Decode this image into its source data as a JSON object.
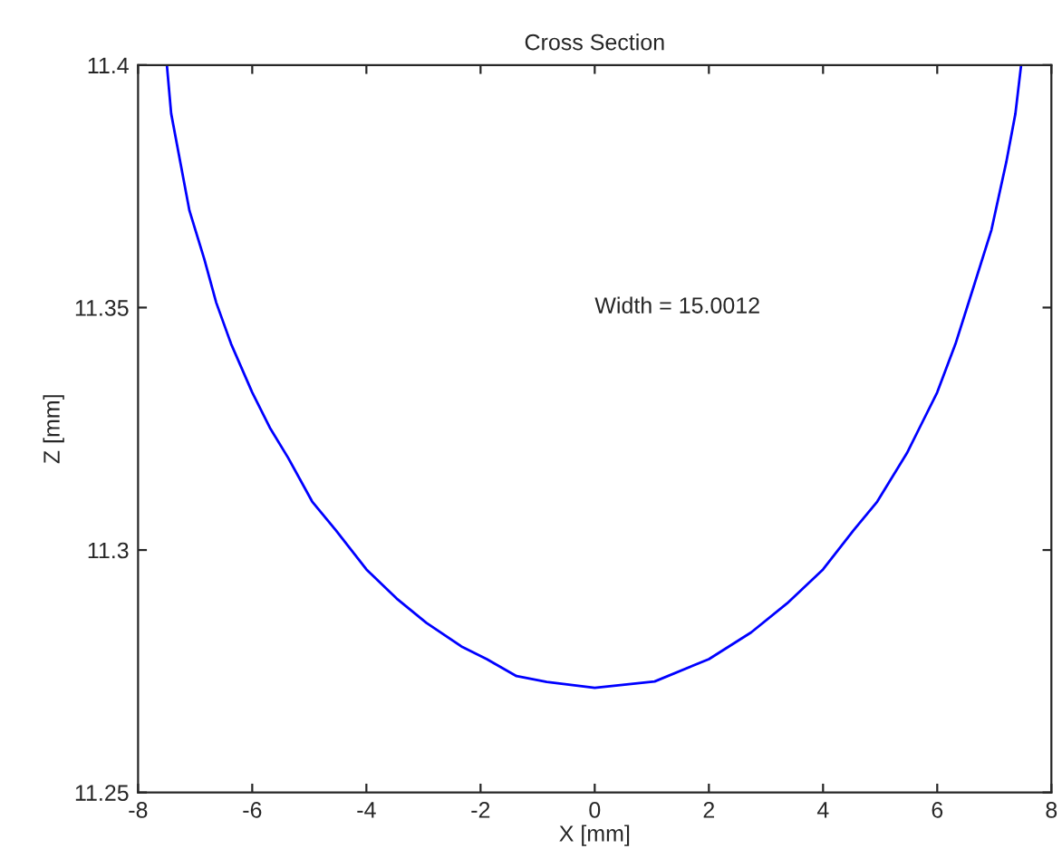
{
  "chart_data": {
    "type": "line",
    "title": "Cross Section",
    "xlabel": "X [mm]",
    "ylabel": "Z [mm]",
    "annotations": [
      "Width = 15.0012"
    ],
    "series": [
      {
        "color": "#0000ff",
        "x": [
          -7.495,
          -7.42,
          -7.26,
          -7.1,
          -6.84,
          -6.63,
          -6.37,
          -6.0,
          -5.68,
          -5.37,
          -4.95,
          -4.53,
          -4.0,
          -3.47,
          -2.95,
          -2.32,
          -1.89,
          -1.37,
          -0.84,
          0,
          1.05,
          2.0,
          2.74,
          3.37,
          4.0,
          4.53,
          4.95,
          5.47,
          6.0,
          6.32,
          6.63,
          6.95,
          7.21,
          7.37,
          7.47
        ],
        "values": [
          11.4,
          11.39,
          11.38,
          11.37,
          11.36,
          11.351,
          11.3425,
          11.3325,
          11.325,
          11.319,
          11.31,
          11.304,
          11.296,
          11.29,
          11.285,
          11.28,
          11.2775,
          11.274,
          11.2728,
          11.2716,
          11.2729,
          11.2775,
          11.283,
          11.289,
          11.296,
          11.304,
          11.31,
          11.32,
          11.3325,
          11.3425,
          11.354,
          11.366,
          11.38,
          11.39,
          11.4
        ]
      }
    ],
    "xlim": [
      -8,
      8
    ],
    "ylim": [
      11.25,
      11.4
    ],
    "xticks": [
      -8,
      -6,
      -4,
      -2,
      0,
      2,
      4,
      6,
      8
    ],
    "yticks": [
      11.25,
      11.3,
      11.35,
      11.4
    ],
    "grid": false,
    "legend": false,
    "marker": "none",
    "line_style": "solid"
  }
}
